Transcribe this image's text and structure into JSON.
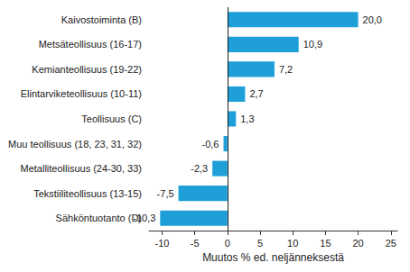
{
  "chart_data": {
    "type": "bar",
    "orientation": "horizontal",
    "categories": [
      "Kaivostoiminta (B)",
      "Metsäteollisuus (16-17)",
      "Kemianteollisuus (19-22)",
      "Elintarviketeollisuus (10-11)",
      "Teollisuus (C)",
      "Muu teollisuus (18, 23, 31, 32)",
      "Metalliteollisuus (24-30, 33)",
      "Tekstiiliteollisuus (13-15)",
      "Sähköntuotanto (D)"
    ],
    "values": [
      20.0,
      10.9,
      7.2,
      2.7,
      1.3,
      -0.6,
      -2.3,
      -7.5,
      -10.3
    ],
    "value_labels": [
      "20,0",
      "10,9",
      "7,2",
      "2,7",
      "1,3",
      "-0,6",
      "-2,3",
      "-7,5",
      "-10,3"
    ],
    "color": "#1f9fd8",
    "xlabel": "Muutos % ed. neljänneksestä",
    "xlim": [
      -12,
      26
    ],
    "xticks": [
      -10,
      -5,
      0,
      5,
      10,
      15,
      20,
      25
    ],
    "data_labels": true,
    "grid": false
  }
}
